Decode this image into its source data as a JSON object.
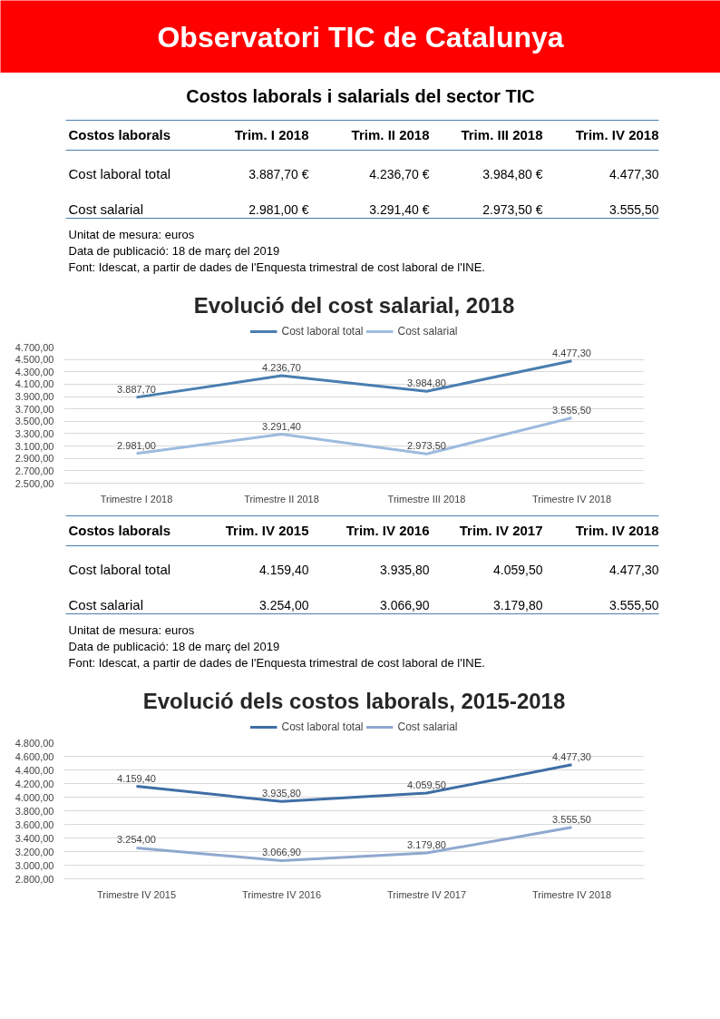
{
  "chart_data": [
    {
      "type": "other",
      "title": "Observatori TIC de Catalunya"
    },
    {
      "type": "other",
      "title": "Costos laborals i salarials del sector TIC",
      "ylabel": "Costos laborals",
      "categories": [
        "Trim. I 2018",
        "Trim. II 2018",
        "Trim. III 2018",
        "Trim. IV 2018"
      ],
      "y_categories": [
        "Cost laboral total",
        "Cost salarial"
      ],
      "cell_labels": [
        [
          "3.887,70 €",
          "4.236,70 €",
          "3.984,80 €",
          "4.477,30"
        ],
        [
          "2.981,00 €",
          "3.291,40 €",
          "2.973,50 €",
          "3.555,50"
        ]
      ],
      "annotations": [
        "Unitat de mesura: euros",
        "Data de publicació: 18 de març del 2019",
        "Font: Idescat, a partir de dades de l'Enquesta trimestral de cost laboral de l'INE."
      ]
    },
    {
      "type": "line",
      "title": "Evolució del cost salarial, 2018",
      "categories": [
        "Trimestre I 2018",
        "Trimestre II 2018",
        "Trimestre III 2018",
        "Trimestre IV 2018"
      ],
      "series": [
        {
          "name": "Cost laboral total",
          "color": "#4a7eb0",
          "values": [
            3887.7,
            4236.7,
            3984.8,
            4477.3
          ],
          "value_labels": [
            "3.887,70",
            "4.236,70",
            "3.984,80",
            "4.477,30"
          ]
        },
        {
          "name": "Cost salarial",
          "color": "#9dbbde",
          "values": [
            2981.0,
            3291.4,
            2973.5,
            3555.5
          ],
          "value_labels": [
            "2.981,00",
            "3.291,40",
            "2.973,50",
            "3.555,50"
          ]
        }
      ],
      "ylim": [
        2500,
        4700
      ],
      "yticks": [
        {
          "value": 2500,
          "label": "2.500,00"
        },
        {
          "value": 2700,
          "label": "2.700,00"
        },
        {
          "value": 2900,
          "label": "2.900,00"
        },
        {
          "value": 3100,
          "label": "3.100,00"
        },
        {
          "value": 3300,
          "label": "3.300,00"
        },
        {
          "value": 3500,
          "label": "3.500,00"
        },
        {
          "value": 3700,
          "label": "3.700,00"
        },
        {
          "value": 3900,
          "label": "3.900,00"
        },
        {
          "value": 4100,
          "label": "4.100,00"
        },
        {
          "value": 4300,
          "label": "4.300,00"
        },
        {
          "value": 4500,
          "label": "4.500,00"
        },
        {
          "value": 4700,
          "label": "4.700,00"
        }
      ],
      "grid": "y",
      "legend": "top"
    },
    {
      "type": "other",
      "ylabel": "Costos laborals",
      "categories": [
        "Trim. IV 2015",
        "Trim. IV 2016",
        "Trim. IV 2017",
        "Trim. IV 2018"
      ],
      "y_categories": [
        "Cost laboral total",
        "Cost salarial"
      ],
      "cell_labels": [
        [
          "4.159,40",
          "3.935,80",
          "4.059,50",
          "4.477,30"
        ],
        [
          "3.254,00",
          "3.066,90",
          "3.179,80",
          "3.555,50"
        ]
      ],
      "annotations": [
        "Unitat de mesura: euros",
        "Data de publicació: 18 de març del 2019",
        "Font: Idescat, a partir de dades de l'Enquesta trimestral de cost laboral de l'INE."
      ]
    },
    {
      "type": "line",
      "title": "Evolució dels costos laborals, 2015-2018",
      "categories": [
        "Trimestre IV 2015",
        "Trimestre IV 2016",
        "Trimestre IV 2017",
        "Trimestre IV 2018"
      ],
      "series": [
        {
          "name": "Cost laboral total",
          "color": "#3f6ea5",
          "values": [
            4159.4,
            3935.8,
            4059.5,
            4477.3
          ],
          "value_labels": [
            "4.159,40",
            "3.935,80",
            "4.059,50",
            "4.477,30"
          ]
        },
        {
          "name": "Cost salarial",
          "color": "#8fa8cf",
          "values": [
            3254.0,
            3066.9,
            3179.8,
            3555.5
          ],
          "value_labels": [
            "3.254,00",
            "3.066,90",
            "3.179,80",
            "3.555,50"
          ]
        }
      ],
      "ylim": [
        2800,
        4800
      ],
      "yticks": [
        {
          "value": 2800,
          "label": "2.800,00"
        },
        {
          "value": 3000,
          "label": "3.000,00"
        },
        {
          "value": 3200,
          "label": "3.200,00"
        },
        {
          "value": 3400,
          "label": "3.400,00"
        },
        {
          "value": 3600,
          "label": "3.600,00"
        },
        {
          "value": 3800,
          "label": "3.800,00"
        },
        {
          "value": 4000,
          "label": "4.000,00"
        },
        {
          "value": 4200,
          "label": "4.200,00"
        },
        {
          "value": 4400,
          "label": "4.400,00"
        },
        {
          "value": 4600,
          "label": "4.600,00"
        },
        {
          "value": 4800,
          "label": "4.800,00"
        }
      ],
      "grid": "y",
      "legend": "top"
    }
  ]
}
